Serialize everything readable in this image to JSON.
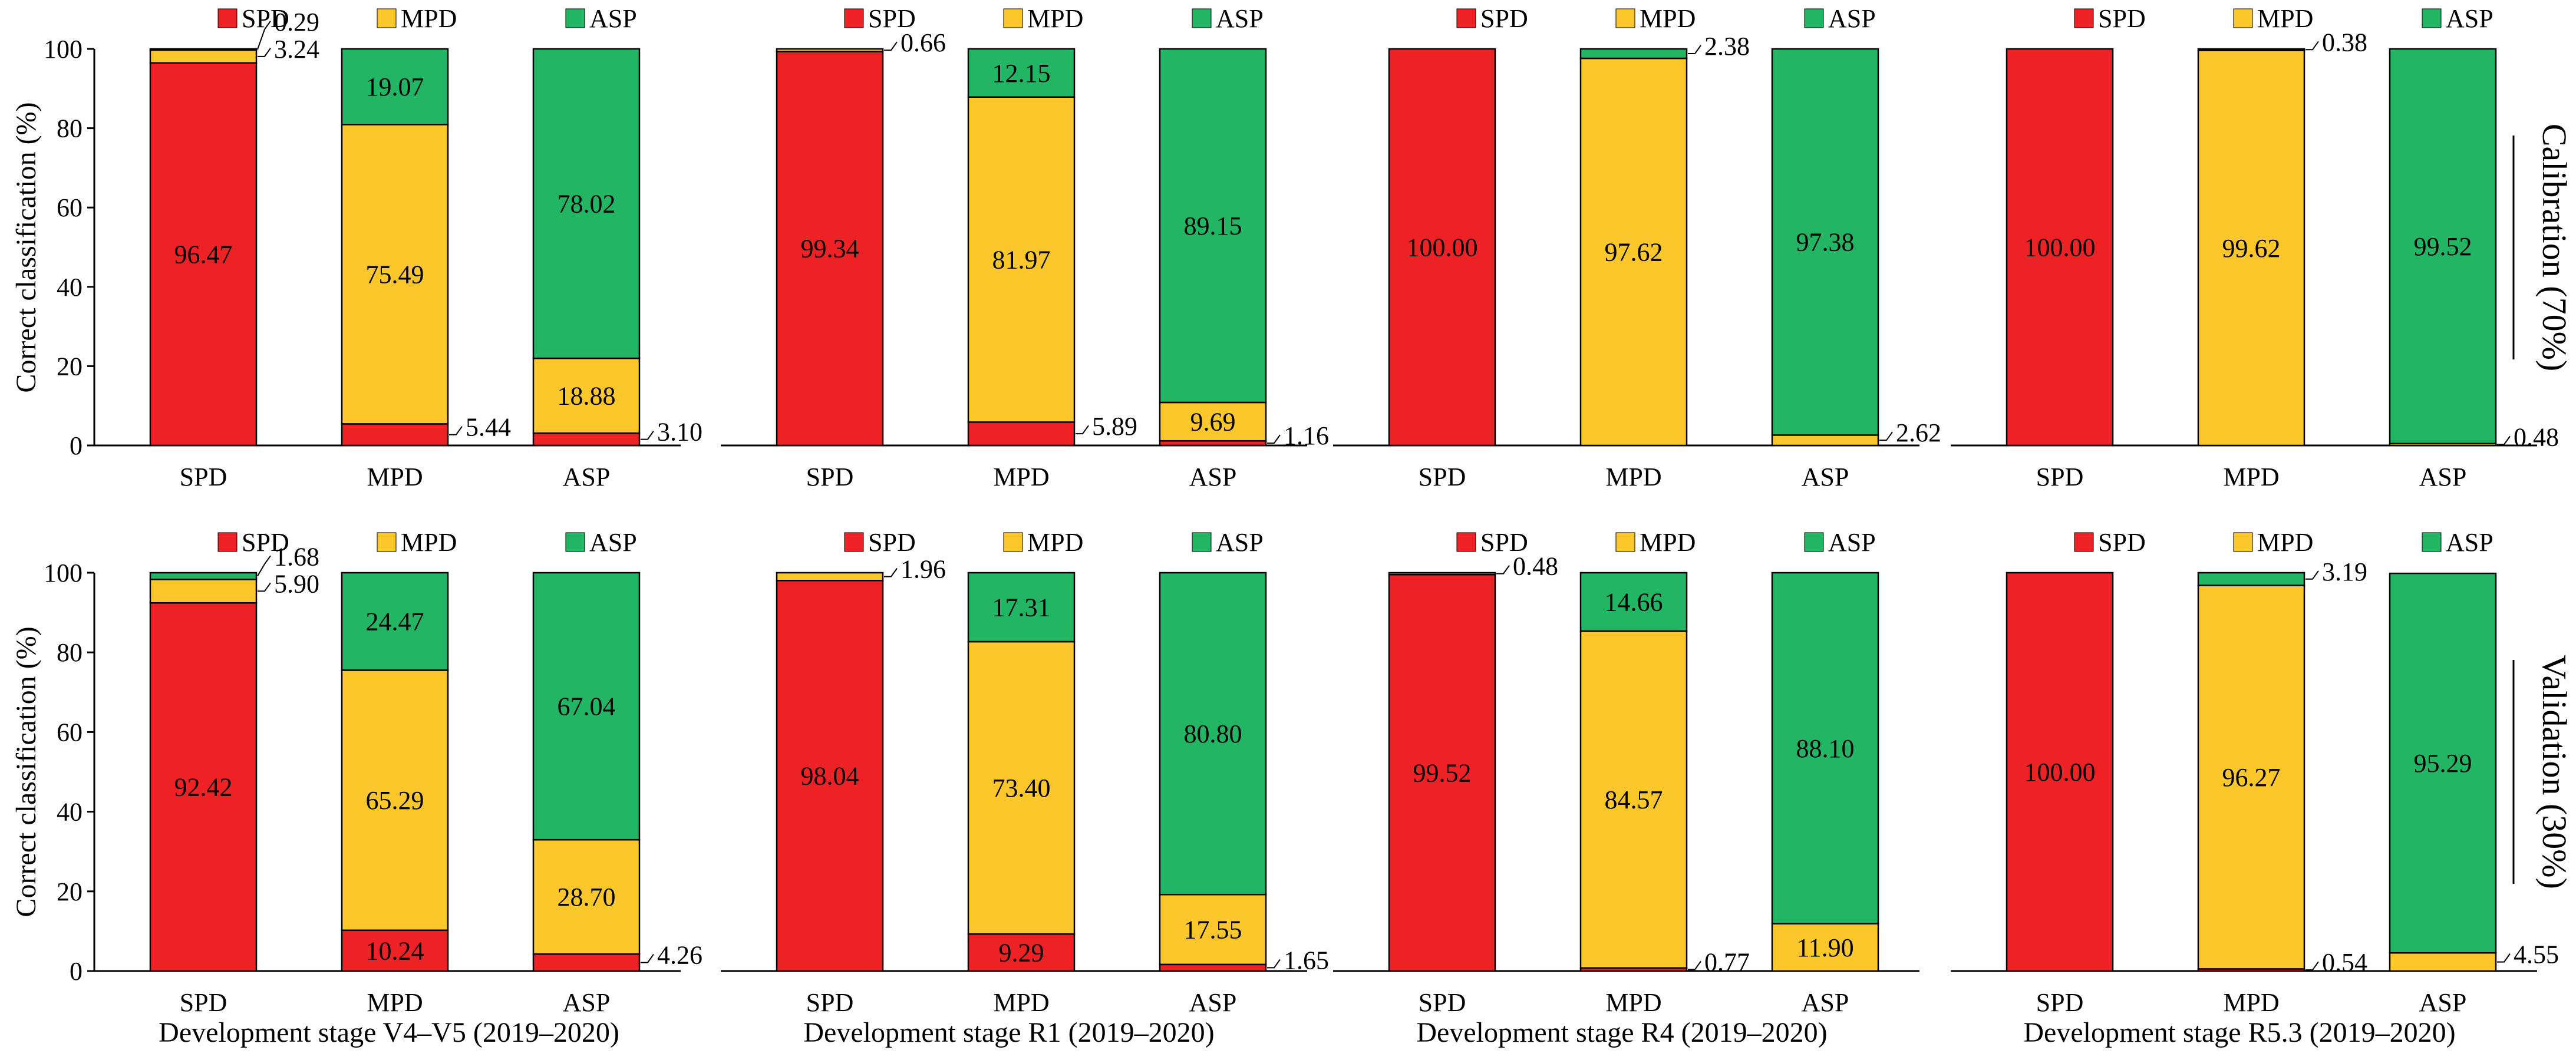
{
  "figure": {
    "y_axis_label": "Correct classification (%)",
    "row_labels": [
      "Calibration (70%)",
      "Validation (30%)"
    ],
    "stage_labels": [
      "Development stage V4–V5 (2019–2020)",
      "Development stage R1 (2019–2020)",
      "Development stage R4 (2019–2020)",
      "Development stage R5.3 (2019–2020)"
    ],
    "colors": {
      "SPD": "#ee2224",
      "MPD": "#fcc72b",
      "ASP": "#22b564"
    }
  },
  "chart_data": [
    {
      "type": "bar",
      "stacked": true,
      "categories": [
        "SPD",
        "MPD",
        "ASP"
      ],
      "series": [
        {
          "name": "SPD",
          "values": [
            96.47,
            5.44,
            3.1
          ]
        },
        {
          "name": "MPD",
          "values": [
            3.24,
            75.49,
            18.88
          ]
        },
        {
          "name": "ASP",
          "values": [
            0.29,
            19.07,
            78.02
          ]
        }
      ],
      "ylabel": "Correct classification (%)",
      "ylim": [
        0,
        100
      ],
      "yticks": [
        0,
        20,
        40,
        60,
        80,
        100
      ],
      "legend": "top"
    },
    {
      "type": "bar",
      "stacked": true,
      "categories": [
        "SPD",
        "MPD",
        "ASP"
      ],
      "series": [
        {
          "name": "SPD",
          "values": [
            99.34,
            5.89,
            1.16
          ]
        },
        {
          "name": "MPD",
          "values": [
            0.66,
            81.97,
            9.69
          ]
        },
        {
          "name": "ASP",
          "values": [
            0,
            12.15,
            89.15
          ]
        }
      ],
      "ylim": [
        0,
        100
      ],
      "legend": "top"
    },
    {
      "type": "bar",
      "stacked": true,
      "categories": [
        "SPD",
        "MPD",
        "ASP"
      ],
      "series": [
        {
          "name": "SPD",
          "values": [
            100.0,
            0,
            0
          ]
        },
        {
          "name": "MPD",
          "values": [
            0,
            97.62,
            2.62
          ]
        },
        {
          "name": "ASP",
          "values": [
            0,
            2.38,
            97.38
          ]
        }
      ],
      "ylim": [
        0,
        100
      ],
      "legend": "top"
    },
    {
      "type": "bar",
      "stacked": true,
      "categories": [
        "SPD",
        "MPD",
        "ASP"
      ],
      "series": [
        {
          "name": "SPD",
          "values": [
            100.0,
            0,
            0
          ]
        },
        {
          "name": "MPD",
          "values": [
            0,
            99.62,
            0.48
          ]
        },
        {
          "name": "ASP",
          "values": [
            0,
            0.38,
            99.52
          ]
        }
      ],
      "ylim": [
        0,
        100
      ],
      "legend": "top"
    },
    {
      "type": "bar",
      "stacked": true,
      "categories": [
        "SPD",
        "MPD",
        "ASP"
      ],
      "series": [
        {
          "name": "SPD",
          "values": [
            92.42,
            10.24,
            4.26
          ]
        },
        {
          "name": "MPD",
          "values": [
            5.9,
            65.29,
            28.7
          ]
        },
        {
          "name": "ASP",
          "values": [
            1.68,
            24.47,
            67.04
          ]
        }
      ],
      "ylabel": "Correct classification (%)",
      "ylim": [
        0,
        100
      ],
      "yticks": [
        0,
        20,
        40,
        60,
        80,
        100
      ],
      "legend": "top"
    },
    {
      "type": "bar",
      "stacked": true,
      "categories": [
        "SPD",
        "MPD",
        "ASP"
      ],
      "series": [
        {
          "name": "SPD",
          "values": [
            98.04,
            9.29,
            1.65
          ]
        },
        {
          "name": "MPD",
          "values": [
            1.96,
            73.4,
            17.55
          ]
        },
        {
          "name": "ASP",
          "values": [
            0,
            17.31,
            80.8
          ]
        }
      ],
      "ylim": [
        0,
        100
      ],
      "legend": "top"
    },
    {
      "type": "bar",
      "stacked": true,
      "categories": [
        "SPD",
        "MPD",
        "ASP"
      ],
      "series": [
        {
          "name": "SPD",
          "values": [
            99.52,
            0.77,
            0
          ]
        },
        {
          "name": "MPD",
          "values": [
            0,
            84.57,
            11.9
          ]
        },
        {
          "name": "ASP",
          "values": [
            0.48,
            14.66,
            88.1
          ]
        }
      ],
      "ylim": [
        0,
        100
      ],
      "legend": "top"
    },
    {
      "type": "bar",
      "stacked": true,
      "categories": [
        "SPD",
        "MPD",
        "ASP"
      ],
      "series": [
        {
          "name": "SPD",
          "values": [
            100.0,
            0.54,
            0
          ]
        },
        {
          "name": "MPD",
          "values": [
            0,
            96.27,
            4.55
          ]
        },
        {
          "name": "ASP",
          "values": [
            0,
            3.19,
            95.29
          ]
        }
      ],
      "ylim": [
        0,
        100
      ],
      "legend": "top"
    }
  ]
}
